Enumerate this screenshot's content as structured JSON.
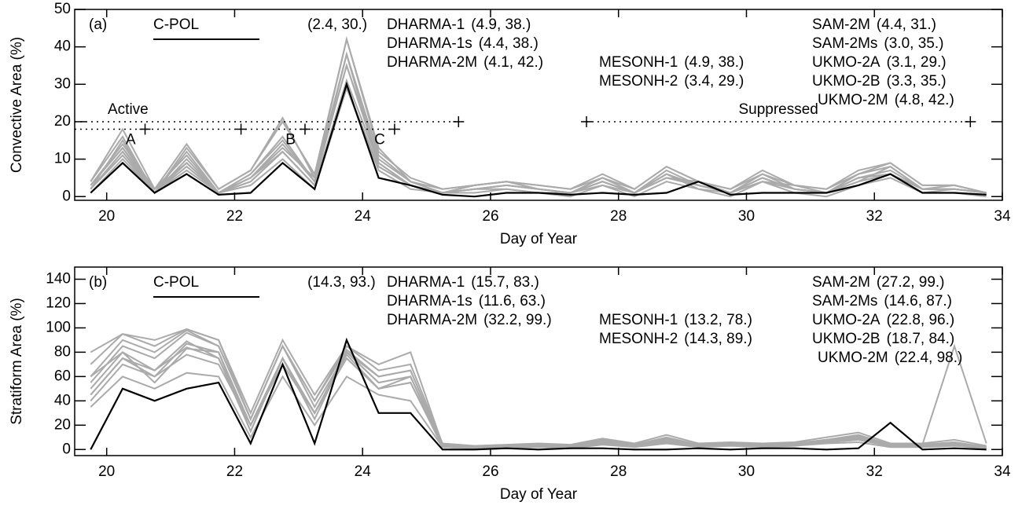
{
  "chart_data": [
    {
      "type": "line",
      "panel_label": "(a)",
      "y_label": "Convective Area (%)",
      "x_label": "Day of Year",
      "xlim": [
        19.5,
        34
      ],
      "xticks": [
        20,
        22,
        24,
        26,
        28,
        30,
        32,
        34
      ],
      "ylim": [
        -1,
        50
      ],
      "yticks": [
        0,
        10,
        20,
        30,
        40,
        50
      ],
      "x": [
        19.75,
        20.25,
        20.75,
        21.25,
        21.75,
        22.25,
        22.75,
        23.25,
        23.75,
        24.25,
        24.75,
        25.25,
        25.75,
        26.25,
        26.75,
        27.25,
        27.75,
        28.25,
        28.75,
        29.25,
        29.75,
        30.25,
        30.75,
        31.25,
        31.75,
        32.25,
        32.75,
        33.25,
        33.75
      ],
      "series": [
        {
          "name": "C-POL",
          "stats": "(2.4, 30.)",
          "color": "#000000",
          "values": [
            1,
            9,
            1,
            6,
            0.5,
            1,
            9,
            2,
            30,
            5,
            3,
            0.5,
            0,
            1,
            1,
            0.5,
            1,
            0.5,
            1,
            4,
            0.5,
            1,
            1,
            1,
            3,
            6,
            1,
            1,
            0.5
          ]
        },
        {
          "name": "DHARMA-1",
          "stats": "(4.9, 38.)",
          "color": "#aaaaaa",
          "values": [
            2,
            15,
            1,
            12,
            1,
            6,
            16,
            4,
            38,
            11,
            4,
            1,
            2,
            3,
            2,
            1,
            5,
            1,
            7,
            3,
            1,
            6,
            2,
            1,
            4,
            8,
            2,
            3,
            1
          ]
        },
        {
          "name": "DHARMA-1s",
          "stats": "(4.4, 38.)",
          "color": "#aaaaaa",
          "values": [
            3,
            13,
            2,
            9,
            1,
            5,
            13,
            5,
            38,
            9,
            3,
            1,
            3,
            4,
            2,
            1,
            3,
            1,
            5,
            4,
            1,
            4,
            3,
            1,
            5,
            6,
            2,
            2,
            1
          ]
        },
        {
          "name": "DHARMA-2M",
          "stats": "(4.1, 42.)",
          "color": "#aaaaaa",
          "values": [
            4,
            16,
            1,
            13,
            2,
            7,
            20,
            6,
            42,
            12,
            5,
            2,
            3,
            4,
            3,
            2,
            5,
            2,
            8,
            4,
            2,
            7,
            3,
            2,
            6,
            9,
            3,
            3,
            1
          ]
        },
        {
          "name": "MESONH-1",
          "stats": "(4.9, 38.)",
          "color": "#aaaaaa",
          "values": [
            2,
            12,
            1,
            8,
            1,
            4,
            12,
            3,
            38,
            8,
            3,
            1,
            2,
            2,
            1,
            1,
            4,
            1,
            6,
            2,
            1,
            5,
            2,
            1,
            4,
            6,
            1,
            2,
            1
          ]
        },
        {
          "name": "MESONH-2",
          "stats": "(3.4, 29.)",
          "color": "#aaaaaa",
          "values": [
            1,
            10,
            1,
            7,
            1,
            3,
            10,
            2,
            29,
            7,
            2,
            1,
            1,
            2,
            1,
            0,
            3,
            0,
            4,
            2,
            0,
            4,
            1,
            0,
            3,
            5,
            1,
            1,
            0
          ]
        },
        {
          "name": "SAM-2M",
          "stats": "(4.4, 31.)",
          "color": "#aaaaaa",
          "values": [
            2,
            11,
            1,
            9,
            1,
            5,
            12,
            3,
            31,
            9,
            3,
            1,
            2,
            3,
            2,
            1,
            4,
            1,
            5,
            3,
            1,
            5,
            2,
            1,
            5,
            6,
            2,
            2,
            1
          ]
        },
        {
          "name": "SAM-2Ms",
          "stats": "(3.0, 35.)",
          "color": "#aaaaaa",
          "values": [
            3,
            14,
            2,
            11,
            1,
            6,
            15,
            4,
            35,
            10,
            4,
            1,
            3,
            4,
            2,
            1,
            5,
            1,
            6,
            3,
            1,
            5,
            2,
            1,
            6,
            8,
            2,
            2,
            1
          ]
        },
        {
          "name": "UKMO-2A",
          "stats": "(3.1, 29.)",
          "color": "#aaaaaa",
          "values": [
            2,
            12,
            1,
            9,
            1,
            4,
            12,
            3,
            29,
            8,
            3,
            1,
            2,
            3,
            2,
            1,
            4,
            1,
            5,
            3,
            1,
            4,
            2,
            1,
            5,
            6,
            2,
            2,
            1
          ]
        },
        {
          "name": "UKMO-2B",
          "stats": "(3.3, 35.)",
          "color": "#aaaaaa",
          "values": [
            3,
            13,
            1,
            10,
            1,
            5,
            14,
            4,
            35,
            9,
            3,
            1,
            2,
            3,
            2,
            1,
            4,
            1,
            6,
            3,
            1,
            5,
            2,
            1,
            5,
            7,
            2,
            2,
            1
          ]
        },
        {
          "name": "UKMO-2M",
          "stats": "(4.8, 42.)",
          "color": "#aaaaaa",
          "values": [
            4,
            18,
            2,
            14,
            2,
            7,
            21,
            5,
            42,
            13,
            4,
            2,
            3,
            4,
            3,
            2,
            6,
            2,
            8,
            4,
            2,
            6,
            3,
            2,
            7,
            9,
            3,
            3,
            1
          ]
        }
      ],
      "periods": [
        {
          "label": "Active",
          "start": 19.5,
          "end": 25.5,
          "level": 20
        },
        {
          "label": "Suppressed",
          "start": 27.5,
          "end": 33.5,
          "level": 20
        }
      ],
      "phases": {
        "level": 18,
        "start": 19.5,
        "bounds": [
          20.6,
          22.1,
          23.1,
          24.5
        ],
        "labels": [
          "A",
          "B",
          "C"
        ]
      }
    },
    {
      "type": "line",
      "panel_label": "(b)",
      "y_label": "Stratiform Area (%)",
      "x_label": "Day of Year",
      "xlim": [
        19.5,
        34
      ],
      "xticks": [
        20,
        22,
        24,
        26,
        28,
        30,
        32,
        34
      ],
      "ylim": [
        -5,
        150
      ],
      "yticks": [
        0,
        20,
        40,
        60,
        80,
        100,
        120,
        140
      ],
      "x": [
        19.75,
        20.25,
        20.75,
        21.25,
        21.75,
        22.25,
        22.75,
        23.25,
        23.75,
        24.25,
        24.75,
        25.25,
        25.75,
        26.25,
        26.75,
        27.25,
        27.75,
        28.25,
        28.75,
        29.25,
        29.75,
        30.25,
        30.75,
        31.25,
        31.75,
        32.25,
        32.75,
        33.25,
        33.75
      ],
      "series": [
        {
          "name": "C-POL",
          "stats": "(14.3, 93.)",
          "color": "#000000",
          "values": [
            0,
            50,
            40,
            50,
            55,
            5,
            70,
            5,
            90,
            30,
            30,
            0,
            0,
            1,
            0,
            1,
            1,
            0,
            0,
            1,
            0,
            1,
            1,
            0,
            1,
            22,
            0,
            1,
            0
          ]
        },
        {
          "name": "DHARMA-1",
          "stats": "(15.7, 83.)",
          "color": "#aaaaaa",
          "values": [
            60,
            80,
            55,
            83,
            80,
            15,
            75,
            25,
            80,
            55,
            60,
            3,
            1,
            2,
            3,
            2,
            6,
            3,
            8,
            3,
            4,
            3,
            4,
            7,
            9,
            3,
            3,
            5,
            2
          ]
        },
        {
          "name": "DHARMA-1s",
          "stats": "(11.6, 63.)",
          "color": "#aaaaaa",
          "values": [
            35,
            60,
            50,
            63,
            60,
            10,
            60,
            20,
            60,
            45,
            40,
            2,
            1,
            1,
            2,
            1,
            4,
            2,
            5,
            2,
            3,
            2,
            3,
            5,
            6,
            2,
            2,
            3,
            1
          ]
        },
        {
          "name": "DHARMA-2M",
          "stats": "(32.2, 99.)",
          "color": "#aaaaaa",
          "values": [
            70,
            95,
            90,
            99,
            90,
            25,
            85,
            40,
            85,
            70,
            80,
            4,
            2,
            3,
            4,
            3,
            8,
            4,
            10,
            4,
            5,
            4,
            5,
            8,
            12,
            4,
            4,
            6,
            2
          ]
        },
        {
          "name": "MESONH-1",
          "stats": "(13.2, 78.)",
          "color": "#aaaaaa",
          "values": [
            40,
            70,
            60,
            78,
            70,
            20,
            70,
            30,
            75,
            50,
            55,
            2,
            1,
            2,
            3,
            2,
            5,
            3,
            6,
            3,
            4,
            3,
            4,
            6,
            8,
            3,
            3,
            4,
            1
          ]
        },
        {
          "name": "MESONH-2",
          "stats": "(14.3, 89.)",
          "color": "#aaaaaa",
          "values": [
            50,
            80,
            65,
            89,
            75,
            15,
            75,
            30,
            80,
            55,
            60,
            2,
            1,
            2,
            3,
            2,
            5,
            3,
            6,
            3,
            4,
            3,
            4,
            6,
            8,
            3,
            3,
            4,
            1
          ]
        },
        {
          "name": "SAM-2M",
          "stats": "(27.2, 99.)",
          "color": "#aaaaaa",
          "values": [
            80,
            95,
            85,
            99,
            90,
            30,
            90,
            45,
            85,
            65,
            70,
            5,
            3,
            4,
            5,
            4,
            9,
            5,
            12,
            5,
            6,
            5,
            6,
            10,
            14,
            5,
            5,
            8,
            3
          ]
        },
        {
          "name": "SAM-2Ms",
          "stats": "(14.6, 87.)",
          "color": "#aaaaaa",
          "values": [
            45,
            75,
            60,
            87,
            80,
            20,
            75,
            30,
            78,
            50,
            55,
            3,
            1,
            2,
            3,
            2,
            6,
            3,
            7,
            3,
            4,
            3,
            4,
            7,
            9,
            3,
            3,
            5,
            2
          ]
        },
        {
          "name": "UKMO-2A",
          "stats": "(22.8, 96.)",
          "color": "#aaaaaa",
          "values": [
            55,
            85,
            75,
            96,
            85,
            25,
            85,
            35,
            80,
            60,
            65,
            3,
            2,
            3,
            4,
            3,
            7,
            4,
            9,
            4,
            5,
            4,
            5,
            8,
            10,
            4,
            4,
            85,
            5
          ]
        },
        {
          "name": "UKMO-2B",
          "stats": "(18.7, 84.)",
          "color": "#aaaaaa",
          "values": [
            45,
            75,
            65,
            84,
            75,
            20,
            75,
            30,
            75,
            50,
            60,
            2,
            1,
            2,
            3,
            2,
            5,
            3,
            6,
            3,
            4,
            3,
            4,
            6,
            8,
            3,
            3,
            5,
            1
          ]
        },
        {
          "name": "UKMO-2M",
          "stats": "(22.4, 98.)",
          "color": "#aaaaaa",
          "values": [
            60,
            90,
            80,
            98,
            85,
            25,
            85,
            40,
            82,
            60,
            65,
            4,
            2,
            3,
            4,
            3,
            7,
            4,
            9,
            4,
            5,
            4,
            5,
            8,
            11,
            4,
            4,
            6,
            2
          ]
        }
      ]
    }
  ]
}
